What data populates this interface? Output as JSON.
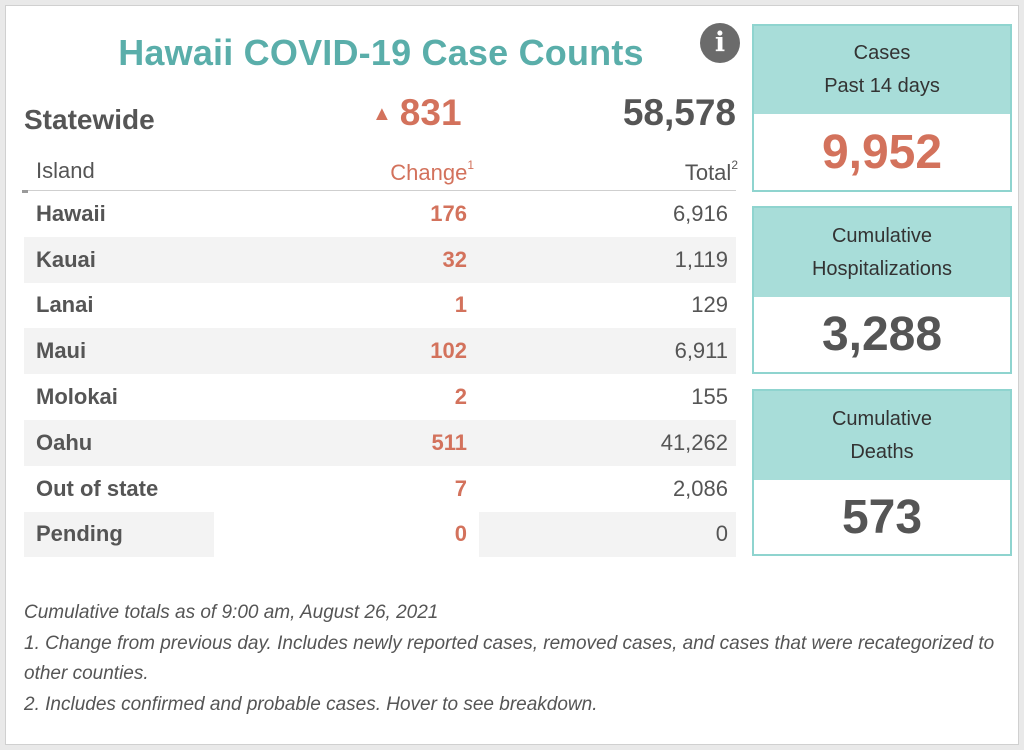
{
  "title": "Hawaii COVID-19 Case Counts",
  "info_icon": {
    "glyph": "i",
    "icon": "info-icon"
  },
  "statewide": {
    "label": "Statewide",
    "change_arrow": "▲",
    "change": "831",
    "total": "58,578"
  },
  "table": {
    "headers": {
      "island": "Island",
      "change": "Change",
      "change_note": "1",
      "total": "Total",
      "total_note": "2"
    },
    "rows": [
      {
        "island": "Hawaii",
        "change": "176",
        "total": "6,916"
      },
      {
        "island": "Kauai",
        "change": "32",
        "total": "1,119"
      },
      {
        "island": "Lanai",
        "change": "1",
        "total": "129"
      },
      {
        "island": "Maui",
        "change": "102",
        "total": "6,911"
      },
      {
        "island": "Molokai",
        "change": "2",
        "total": "155"
      },
      {
        "island": "Oahu",
        "change": "511",
        "total": "41,262"
      },
      {
        "island": "Out of state",
        "change": "7",
        "total": "2,086"
      },
      {
        "island": "Pending",
        "change": "0",
        "total": "0"
      }
    ]
  },
  "cards": [
    {
      "line1": "Cases",
      "line2": "Past 14 days",
      "value": "9,952"
    },
    {
      "line1": "Cumulative",
      "line2": "Hospitalizations",
      "value": "3,288"
    },
    {
      "line1": "Cumulative",
      "line2": "Deaths",
      "value": "573"
    }
  ],
  "notes": [
    "Cumulative totals as of 9:00 am, August 26, 2021",
    "1. Change from previous day. Includes newly reported cases, removed cases, and cases that were recategorized to other counties.",
    "2. Includes confirmed and probable cases. Hover to see breakdown."
  ],
  "chart_data": {
    "type": "table",
    "title": "Hawaii COVID-19 Case Counts",
    "columns": [
      "Island",
      "Change",
      "Total"
    ],
    "statewide": {
      "change": 831,
      "total": 58578
    },
    "categories": [
      "Hawaii",
      "Kauai",
      "Lanai",
      "Maui",
      "Molokai",
      "Oahu",
      "Out of state",
      "Pending"
    ],
    "series": [
      {
        "name": "Change",
        "values": [
          176,
          32,
          1,
          102,
          2,
          511,
          7,
          0
        ]
      },
      {
        "name": "Total",
        "values": [
          6916,
          1119,
          129,
          6911,
          155,
          41262,
          2086,
          0
        ]
      }
    ],
    "kpis": [
      {
        "label": "Cases Past 14 days",
        "value": 9952
      },
      {
        "label": "Cumulative Hospitalizations",
        "value": 3288
      },
      {
        "label": "Cumulative Deaths",
        "value": 573
      }
    ]
  },
  "colors": {
    "title": "#5aaeaa",
    "change": "#d3725c",
    "card_header": "#a8ddd9",
    "card_border": "#8fd4cf",
    "row_shade": "#f3f3f3",
    "text": "#555555"
  }
}
